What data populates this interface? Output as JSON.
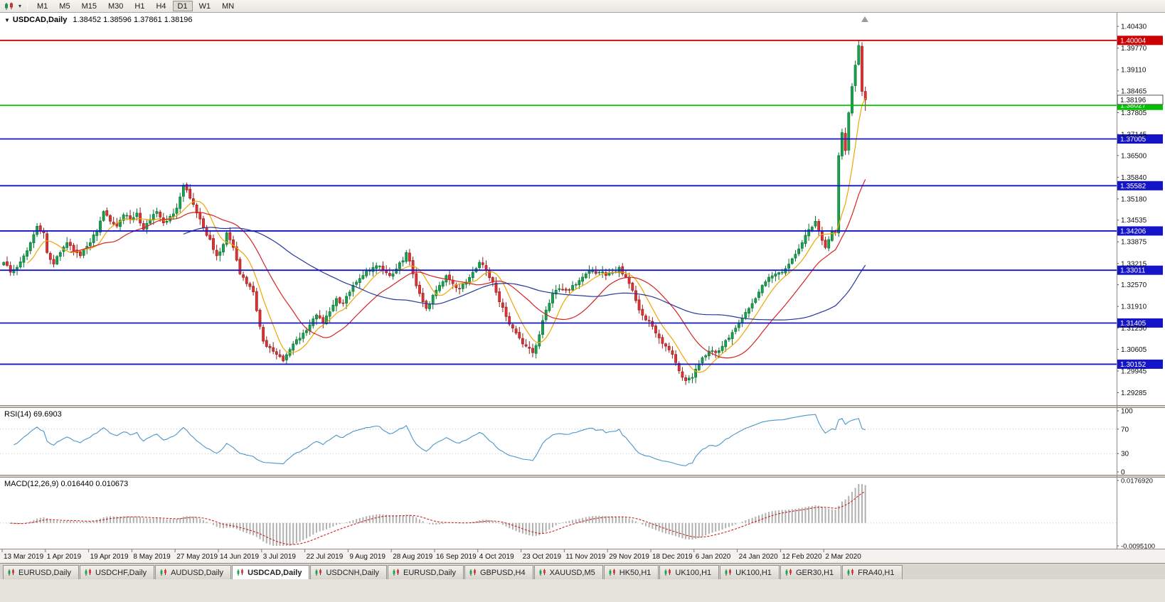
{
  "toolbar": {
    "timeframes": [
      "M1",
      "M5",
      "M15",
      "M30",
      "H1",
      "H4",
      "D1",
      "W1",
      "MN"
    ],
    "active_timeframe": "D1"
  },
  "chart": {
    "symbol": "USDCAD,Daily",
    "ohlc_text": "1.38452 1.38596 1.37861 1.38196",
    "open": "1.38452",
    "high": "1.38596",
    "low": "1.37861",
    "close": "1.38196"
  },
  "chart_data": {
    "type": "candlestick",
    "symbol": "USDCAD",
    "timeframe": "Daily",
    "x_axis_labels": [
      "13 Mar 2019",
      "1 Apr 2019",
      "19 Apr 2019",
      "8 May 2019",
      "27 May 2019",
      "14 Jun 2019",
      "3 Jul 2019",
      "22 Jul 2019",
      "9 Aug 2019",
      "28 Aug 2019",
      "16 Sep 2019",
      "4 Oct 2019",
      "23 Oct 2019",
      "11 Nov 2019",
      "29 Nov 2019",
      "18 Dec 2019",
      "6 Jan 2020",
      "24 Jan 2020",
      "12 Feb 2020",
      "2 Mar 2020"
    ],
    "bars_total": 260,
    "bars_per_label": 13,
    "y_range": [
      1.2895,
      1.408
    ],
    "price_axis_ticks": [
      "1.40430",
      "1.39770",
      "1.39110",
      "1.38465",
      "1.37805",
      "1.37145",
      "1.36500",
      "1.35840",
      "1.35180",
      "1.34535",
      "1.33875",
      "1.33215",
      "1.32570",
      "1.31910",
      "1.31250",
      "1.30605",
      "1.29945",
      "1.29285"
    ],
    "last_bar": {
      "open": 1.38452,
      "high": 1.38596,
      "low": 1.37861,
      "close": 1.38196
    },
    "high_extreme": {
      "bar": 257,
      "price": 1.4
    },
    "low_extreme": {
      "bar": 205,
      "price": 1.2952
    },
    "close_path_anchors": [
      [
        0,
        1.3325
      ],
      [
        2,
        1.3295
      ],
      [
        4,
        1.331
      ],
      [
        6,
        1.3345
      ],
      [
        8,
        1.3385
      ],
      [
        10,
        1.3435
      ],
      [
        12,
        1.3415
      ],
      [
        13,
        1.3355
      ],
      [
        15,
        1.332
      ],
      [
        17,
        1.3355
      ],
      [
        19,
        1.3385
      ],
      [
        21,
        1.336
      ],
      [
        23,
        1.3345
      ],
      [
        26,
        1.3385
      ],
      [
        28,
        1.342
      ],
      [
        30,
        1.348
      ],
      [
        32,
        1.345
      ],
      [
        34,
        1.3435
      ],
      [
        36,
        1.347
      ],
      [
        38,
        1.3455
      ],
      [
        40,
        1.3475
      ],
      [
        42,
        1.3425
      ],
      [
        44,
        1.3455
      ],
      [
        46,
        1.348
      ],
      [
        48,
        1.3445
      ],
      [
        50,
        1.3465
      ],
      [
        52,
        1.349
      ],
      [
        54,
        1.356
      ],
      [
        55,
        1.3545
      ],
      [
        56,
        1.352
      ],
      [
        58,
        1.3475
      ],
      [
        60,
        1.343
      ],
      [
        62,
        1.3395
      ],
      [
        64,
        1.3345
      ],
      [
        66,
        1.338
      ],
      [
        67,
        1.3415
      ],
      [
        69,
        1.337
      ],
      [
        71,
        1.329
      ],
      [
        73,
        1.326
      ],
      [
        75,
        1.3235
      ],
      [
        77,
        1.313
      ],
      [
        78,
        1.3085
      ],
      [
        80,
        1.3065
      ],
      [
        82,
        1.3045
      ],
      [
        84,
        1.3025
      ],
      [
        86,
        1.306
      ],
      [
        88,
        1.309
      ],
      [
        90,
        1.311
      ],
      [
        92,
        1.3135
      ],
      [
        94,
        1.3165
      ],
      [
        96,
        1.314
      ],
      [
        98,
        1.3175
      ],
      [
        100,
        1.3215
      ],
      [
        102,
        1.32
      ],
      [
        104,
        1.3235
      ],
      [
        106,
        1.3265
      ],
      [
        108,
        1.3285
      ],
      [
        110,
        1.33
      ],
      [
        112,
        1.3315
      ],
      [
        114,
        1.33
      ],
      [
        116,
        1.3285
      ],
      [
        118,
        1.3305
      ],
      [
        120,
        1.333
      ],
      [
        121,
        1.3355
      ],
      [
        123,
        1.329
      ],
      [
        125,
        1.323
      ],
      [
        127,
        1.3185
      ],
      [
        129,
        1.3225
      ],
      [
        131,
        1.3255
      ],
      [
        133,
        1.3285
      ],
      [
        135,
        1.326
      ],
      [
        137,
        1.3245
      ],
      [
        139,
        1.3265
      ],
      [
        141,
        1.3295
      ],
      [
        143,
        1.3325
      ],
      [
        145,
        1.33
      ],
      [
        147,
        1.3265
      ],
      [
        149,
        1.3205
      ],
      [
        151,
        1.316
      ],
      [
        153,
        1.3125
      ],
      [
        155,
        1.3095
      ],
      [
        157,
        1.307
      ],
      [
        159,
        1.305
      ],
      [
        161,
        1.3105
      ],
      [
        163,
        1.318
      ],
      [
        165,
        1.323
      ],
      [
        167,
        1.3245
      ],
      [
        169,
        1.324
      ],
      [
        171,
        1.3255
      ],
      [
        173,
        1.327
      ],
      [
        175,
        1.329
      ],
      [
        177,
        1.33
      ],
      [
        179,
        1.3295
      ],
      [
        181,
        1.3285
      ],
      [
        183,
        1.3295
      ],
      [
        185,
        1.331
      ],
      [
        187,
        1.328
      ],
      [
        189,
        1.324
      ],
      [
        191,
        1.318
      ],
      [
        193,
        1.315
      ],
      [
        195,
        1.313
      ],
      [
        197,
        1.3095
      ],
      [
        199,
        1.307
      ],
      [
        201,
        1.3045
      ],
      [
        203,
        1.2995
      ],
      [
        205,
        1.2965
      ],
      [
        207,
        1.2975
      ],
      [
        208,
        1.3
      ],
      [
        210,
        1.3035
      ],
      [
        212,
        1.3055
      ],
      [
        214,
        1.305
      ],
      [
        216,
        1.307
      ],
      [
        218,
        1.3095
      ],
      [
        220,
        1.3125
      ],
      [
        222,
        1.3155
      ],
      [
        224,
        1.3185
      ],
      [
        226,
        1.3215
      ],
      [
        228,
        1.3255
      ],
      [
        230,
        1.328
      ],
      [
        232,
        1.329
      ],
      [
        234,
        1.3295
      ],
      [
        236,
        1.332
      ],
      [
        238,
        1.335
      ],
      [
        240,
        1.3385
      ],
      [
        242,
        1.3425
      ],
      [
        244,
        1.345
      ],
      [
        245,
        1.342
      ],
      [
        247,
        1.337
      ],
      [
        249,
        1.342
      ],
      [
        250,
        1.3415
      ],
      [
        251,
        1.365
      ],
      [
        252,
        1.372
      ],
      [
        253,
        1.3665
      ],
      [
        254,
        1.378
      ],
      [
        255,
        1.386
      ],
      [
        256,
        1.3925
      ],
      [
        257,
        1.3985
      ],
      [
        258,
        1.3845
      ],
      [
        259,
        1.38196
      ]
    ],
    "horizontal_lines": [
      {
        "label": "1.40004",
        "color": "#cc0000"
      },
      {
        "label": "1.38027",
        "color": "#00c000"
      },
      {
        "label": "1.37005",
        "color": "#1414c8"
      },
      {
        "label": "1.35582",
        "color": "#1414c8"
      },
      {
        "label": "1.34206",
        "color": "#1414c8"
      },
      {
        "label": "1.33011",
        "color": "#1414c8"
      },
      {
        "label": "1.31405",
        "color": "#1414c8"
      },
      {
        "label": "1.30152",
        "color": "#1414c8"
      }
    ],
    "current_price": {
      "label": "1.38196"
    },
    "colors": {
      "up": "#17a24d",
      "down": "#e03232",
      "up_border": "#0b6e33",
      "down_border": "#8f1d1d",
      "background": "#ffffff"
    },
    "moving_averages": [
      {
        "period": 8,
        "color": "#f0a500"
      },
      {
        "period": 21,
        "color": "#d42424"
      },
      {
        "period": 55,
        "color": "#27379b"
      }
    ],
    "rsi": {
      "label": "RSI(14) 69.6903",
      "period": 14,
      "value": "69.6903",
      "axis_labels": [
        "100",
        "70",
        "30",
        "0"
      ],
      "level_lines": [
        70,
        30
      ],
      "color": "#4a96c8"
    },
    "macd": {
      "label": "MACD(12,26,9) 0.016440 0.010673",
      "fast": 12,
      "slow": 26,
      "signal": 9,
      "value_main": "0.016440",
      "value_signal": "0.010673",
      "axis_top": "0.0176920",
      "axis_bottom": "-0.0095100",
      "hist_color": "#b0b0b0",
      "signal_color": "#cc2222"
    }
  },
  "tabs": {
    "active_index": 3,
    "items": [
      "EURUSD,Daily",
      "USDCHF,Daily",
      "AUDUSD,Daily",
      "USDCAD,Daily",
      "USDCNH,Daily",
      "EURUSD,Daily",
      "GBPUSD,H4",
      "XAUUSD,M5",
      "HK50,H1",
      "UK100,H1",
      "UK100,H1",
      "GER30,H1",
      "FRA40,H1"
    ]
  }
}
